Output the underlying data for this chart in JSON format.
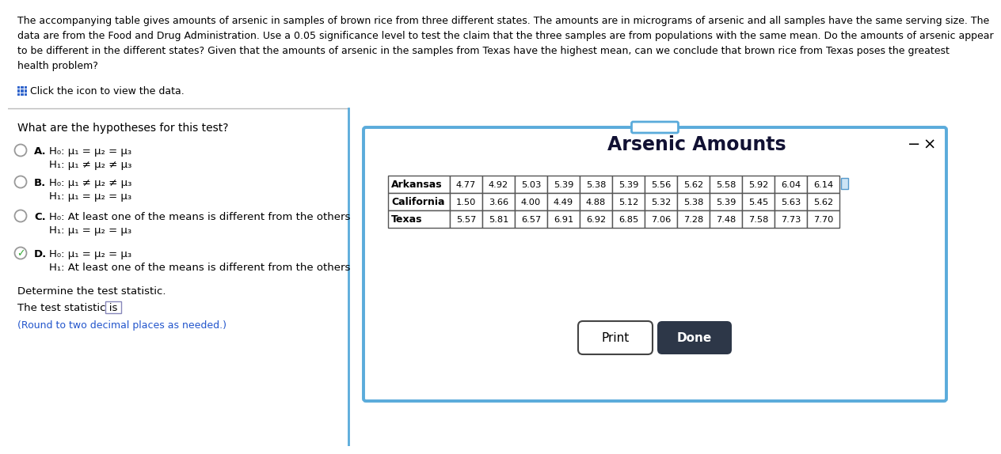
{
  "title_text": "The accompanying table gives amounts of arsenic in samples of brown rice from three different states. The amounts are in micrograms of arsenic and all samples have the same serving size. The\ndata are from the Food and Drug Administration. Use a 0.05 significance level to test the claim that the three samples are from populations with the same mean. Do the amounts of arsenic appear\nto be different in the different states? Given that the amounts of arsenic in the samples from Texas have the highest mean, can we conclude that brown rice from Texas poses the greatest\nhealth problem?",
  "click_text": "Click the icon to view the data.",
  "question_text": "What are the hypotheses for this test?",
  "options": [
    {
      "label": "A.",
      "h0": "H₀: μ₁ = μ₂ = μ₃",
      "h1": "H₁: μ₁ ≠ μ₂ ≠ μ₃",
      "selected": false
    },
    {
      "label": "B.",
      "h0": "H₀: μ₁ ≠ μ₂ ≠ μ₃",
      "h1": "H₁: μ₁ = μ₂ = μ₃",
      "selected": false
    },
    {
      "label": "C.",
      "h0": "H₀: At least one of the means is different from the others",
      "h1": "H₁: μ₁ = μ₂ = μ₃",
      "selected": false
    },
    {
      "label": "D.",
      "h0": "H₀: μ₁ = μ₂ = μ₃",
      "h1": "H₁: At least one of the means is different from the others",
      "selected": true
    }
  ],
  "determine_text": "Determine the test statistic.",
  "statistic_text": "The test statistic is",
  "round_text": "(Round to two decimal places as needed.)",
  "dialog_title": "Arsenic Amounts",
  "table_headers": [
    "Arkansas",
    "California",
    "Texas"
  ],
  "table_data": [
    [
      4.77,
      4.92,
      5.03,
      5.39,
      5.38,
      5.39,
      5.56,
      5.62,
      5.58,
      5.92,
      6.04,
      6.14
    ],
    [
      1.5,
      3.66,
      4.0,
      4.49,
      4.88,
      5.12,
      5.32,
      5.38,
      5.39,
      5.45,
      5.63,
      5.62
    ],
    [
      5.57,
      5.81,
      6.57,
      6.91,
      6.92,
      6.85,
      7.06,
      7.28,
      7.48,
      7.58,
      7.73,
      7.7
    ]
  ],
  "bg_color": "#ffffff",
  "text_color": "#000000",
  "dialog_border_color": "#5aabdb",
  "table_border_color": "#555555",
  "click_icon_color": "#3366cc",
  "round_text_color": "#2255cc",
  "selected_check_color": "#33aa33",
  "done_btn_color": "#2d3748",
  "separator_color": "#bbbbbb"
}
